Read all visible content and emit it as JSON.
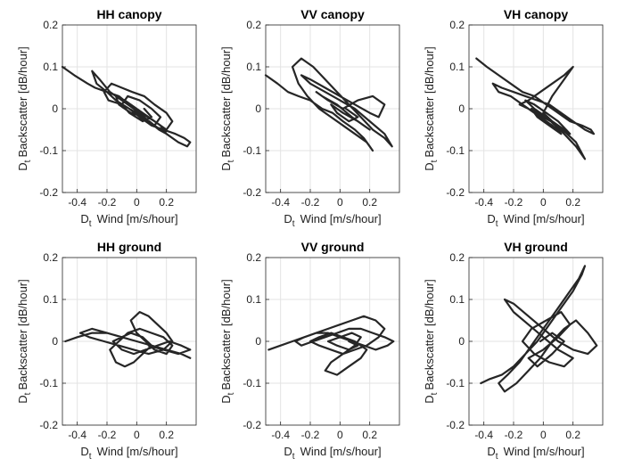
{
  "figure": {
    "x_label_prefix": "D",
    "x_label_sub": "t",
    "x_label_text": "Wind [m/s/hour]",
    "y_label_prefix": "D",
    "y_label_sub": "t",
    "y_label_text": "Backscatter [dB/hour]",
    "line_color": "#262626",
    "grid_color": "#e3e3e3"
  },
  "chart_data": [
    {
      "type": "line",
      "title": "HH canopy",
      "xlim": [
        -0.5,
        0.4
      ],
      "ylim": [
        -0.2,
        0.2
      ],
      "xticks": [
        -0.4,
        -0.2,
        0,
        0.2
      ],
      "xtick_labels": [
        "-0.4",
        "-0.2",
        "0",
        "0.2"
      ],
      "yticks": [
        -0.2,
        -0.1,
        0,
        0.1,
        0.2
      ],
      "ytick_labels": [
        "-0.2",
        "-0.1",
        "0",
        "0.1",
        "0.2"
      ],
      "grid": true,
      "series": [
        {
          "x": [
            -0.5,
            -0.42,
            -0.33,
            -0.28,
            -0.2,
            -0.14,
            -0.05,
            0.02,
            0.1,
            0.18,
            0.26,
            0.32,
            0.36,
            0.34,
            0.28,
            0.2,
            0.12,
            0.05,
            -0.02,
            -0.1,
            -0.18,
            -0.25,
            -0.3,
            -0.27,
            -0.2,
            -0.12,
            -0.05,
            0.03,
            0.12,
            0.2,
            0.24,
            0.2,
            0.12,
            0.05,
            -0.03,
            -0.1,
            -0.17,
            -0.22,
            -0.19,
            -0.1,
            0.0,
            0.08,
            0.15,
            0.2,
            0.16,
            0.08,
            0.0,
            -0.08,
            -0.14,
            -0.12,
            -0.04,
            0.05,
            0.12,
            0.16,
            0.1,
            0.02,
            -0.06,
            -0.1,
            -0.05,
            0.04,
            0.1,
            0.05
          ],
          "y": [
            0.1,
            0.08,
            0.06,
            0.05,
            0.04,
            0.02,
            0.0,
            -0.02,
            -0.04,
            -0.05,
            -0.06,
            -0.07,
            -0.08,
            -0.09,
            -0.08,
            -0.06,
            -0.04,
            -0.02,
            0.0,
            0.02,
            0.04,
            0.07,
            0.09,
            0.06,
            0.04,
            0.03,
            0.01,
            -0.01,
            -0.03,
            -0.05,
            -0.03,
            -0.01,
            0.01,
            0.03,
            0.04,
            0.05,
            0.06,
            0.04,
            0.02,
            0.01,
            -0.01,
            -0.03,
            -0.05,
            -0.06,
            -0.04,
            -0.02,
            0.0,
            0.02,
            0.03,
            0.01,
            -0.01,
            -0.02,
            -0.04,
            -0.02,
            0.0,
            0.02,
            0.03,
            0.01,
            -0.01,
            -0.03,
            -0.02,
            0.0
          ]
        }
      ]
    },
    {
      "type": "line",
      "title": "VV canopy",
      "xlim": [
        -0.5,
        0.4
      ],
      "ylim": [
        -0.2,
        0.2
      ],
      "xticks": [
        -0.4,
        -0.2,
        0,
        0.2
      ],
      "xtick_labels": [
        "-0.4",
        "-0.2",
        "0",
        "0.2"
      ],
      "yticks": [
        -0.2,
        -0.1,
        0,
        0.1,
        0.2
      ],
      "ytick_labels": [
        "-0.2",
        "-0.1",
        "0",
        "0.1",
        "0.2"
      ],
      "grid": true,
      "series": [
        {
          "x": [
            -0.5,
            -0.42,
            -0.35,
            -0.28,
            -0.2,
            -0.12,
            -0.05,
            0.02,
            0.1,
            0.16,
            0.2,
            0.22,
            0.18,
            0.1,
            0.02,
            -0.06,
            -0.14,
            -0.22,
            -0.28,
            -0.32,
            -0.26,
            -0.18,
            -0.1,
            -0.02,
            0.06,
            0.14,
            0.22,
            0.3,
            0.35,
            0.3,
            0.2,
            0.1,
            0.0,
            -0.1,
            -0.2,
            -0.26,
            -0.2,
            -0.1,
            0.0,
            0.1,
            0.2,
            0.26,
            0.3,
            0.22,
            0.12,
            0.02,
            -0.08,
            -0.16,
            -0.12,
            -0.02,
            0.08,
            0.16,
            0.2,
            0.12,
            0.02,
            -0.06,
            -0.02,
            0.06,
            0.12,
            0.04
          ],
          "y": [
            0.08,
            0.06,
            0.04,
            0.03,
            0.02,
            0.0,
            -0.01,
            -0.03,
            -0.05,
            -0.07,
            -0.09,
            -0.1,
            -0.08,
            -0.06,
            -0.04,
            -0.02,
            0.0,
            0.03,
            0.06,
            0.1,
            0.12,
            0.1,
            0.07,
            0.04,
            0.01,
            -0.02,
            -0.05,
            -0.07,
            -0.09,
            -0.06,
            -0.03,
            0.0,
            0.02,
            0.04,
            0.06,
            0.08,
            0.07,
            0.05,
            0.03,
            0.01,
            -0.01,
            -0.02,
            0.01,
            0.03,
            0.02,
            0.0,
            0.02,
            0.04,
            0.03,
            0.01,
            -0.02,
            -0.04,
            -0.05,
            -0.03,
            -0.01,
            0.01,
            -0.01,
            -0.03,
            -0.02,
            0.0
          ]
        }
      ]
    },
    {
      "type": "line",
      "title": "VH canopy",
      "xlim": [
        -0.5,
        0.4
      ],
      "ylim": [
        -0.2,
        0.2
      ],
      "xticks": [
        -0.4,
        -0.2,
        0,
        0.2
      ],
      "xtick_labels": [
        "-0.4",
        "-0.2",
        "0",
        "0.2"
      ],
      "yticks": [
        -0.2,
        -0.1,
        0,
        0.1,
        0.2
      ],
      "ytick_labels": [
        "-0.2",
        "-0.1",
        "0",
        "0.1",
        "0.2"
      ],
      "grid": true,
      "series": [
        {
          "x": [
            -0.45,
            -0.38,
            -0.3,
            -0.22,
            -0.14,
            -0.06,
            0.02,
            0.1,
            0.18,
            0.26,
            0.32,
            0.34,
            0.28,
            0.2,
            0.12,
            0.04,
            -0.04,
            -0.12,
            -0.2,
            -0.28,
            -0.34,
            -0.3,
            -0.22,
            -0.14,
            -0.06,
            0.02,
            0.1,
            0.16,
            0.22,
            0.28,
            0.22,
            0.14,
            0.06,
            0.0,
            0.06,
            0.14,
            0.2,
            0.14,
            0.06,
            -0.02,
            -0.1,
            -0.16,
            -0.1,
            -0.02,
            0.06,
            0.12,
            0.08,
            0.02,
            -0.06,
            -0.12,
            -0.06,
            0.02,
            0.1,
            0.18,
            0.1,
            0.0,
            -0.08,
            -0.04,
            0.04,
            0.12
          ],
          "y": [
            0.12,
            0.1,
            0.08,
            0.06,
            0.04,
            0.03,
            0.01,
            -0.01,
            -0.03,
            -0.04,
            -0.05,
            -0.06,
            -0.05,
            -0.03,
            -0.01,
            0.01,
            0.02,
            0.03,
            0.04,
            0.05,
            0.06,
            0.04,
            0.03,
            0.01,
            -0.01,
            -0.02,
            -0.04,
            -0.06,
            -0.08,
            -0.12,
            -0.09,
            -0.06,
            -0.03,
            -0.01,
            0.03,
            0.07,
            0.1,
            0.08,
            0.06,
            0.04,
            0.02,
            0.01,
            0.0,
            -0.02,
            -0.04,
            -0.06,
            -0.04,
            -0.02,
            0.0,
            0.02,
            0.01,
            -0.01,
            -0.03,
            -0.06,
            -0.04,
            -0.02,
            0.0,
            -0.02,
            -0.04,
            -0.06
          ]
        }
      ]
    },
    {
      "type": "line",
      "title": "HH ground",
      "xlim": [
        -0.5,
        0.4
      ],
      "ylim": [
        -0.2,
        0.2
      ],
      "xticks": [
        -0.4,
        -0.2,
        0,
        0.2
      ],
      "xtick_labels": [
        "-0.4",
        "-0.2",
        "0",
        "0.2"
      ],
      "yticks": [
        -0.2,
        -0.1,
        0,
        0.1,
        0.2
      ],
      "ytick_labels": [
        "-0.2",
        "-0.1",
        "0",
        "0.1",
        "0.2"
      ],
      "grid": true,
      "series": [
        {
          "x": [
            -0.48,
            -0.4,
            -0.3,
            -0.2,
            -0.1,
            0.0,
            0.1,
            0.2,
            0.3,
            0.36,
            0.3,
            0.2,
            0.1,
            0.0,
            -0.1,
            -0.2,
            -0.3,
            -0.38,
            -0.32,
            -0.22,
            -0.12,
            -0.02,
            0.08,
            0.18,
            0.24,
            0.2,
            0.14,
            0.08,
            0.02,
            -0.04,
            0.0,
            0.06,
            0.12,
            0.2,
            0.24,
            0.18,
            0.1,
            0.02,
            -0.06,
            -0.12,
            -0.18,
            -0.14,
            -0.08,
            -0.02,
            0.04,
            0.1,
            0.04,
            -0.04,
            -0.1,
            -0.16,
            -0.1,
            -0.02,
            0.06,
            0.14,
            0.22,
            0.3,
            0.36,
            0.28,
            0.18,
            0.08
          ],
          "y": [
            0.0,
            0.01,
            0.02,
            0.02,
            0.01,
            0.0,
            -0.01,
            -0.02,
            -0.03,
            -0.04,
            -0.03,
            -0.02,
            -0.01,
            0.0,
            0.01,
            0.02,
            0.03,
            0.02,
            0.01,
            0.0,
            -0.01,
            -0.02,
            -0.03,
            -0.02,
            0.0,
            0.02,
            0.04,
            0.06,
            0.07,
            0.05,
            0.02,
            0.0,
            -0.02,
            -0.03,
            -0.01,
            0.01,
            0.02,
            0.03,
            0.02,
            0.0,
            -0.02,
            -0.05,
            -0.06,
            -0.05,
            -0.03,
            -0.01,
            0.01,
            0.02,
            0.01,
            0.0,
            -0.02,
            -0.03,
            -0.02,
            -0.01,
            0.0,
            -0.01,
            -0.02,
            -0.03,
            -0.02,
            -0.01
          ]
        }
      ]
    },
    {
      "type": "line",
      "title": "VV ground",
      "xlim": [
        -0.5,
        0.4
      ],
      "ylim": [
        -0.2,
        0.2
      ],
      "xticks": [
        -0.4,
        -0.2,
        0,
        0.2
      ],
      "xtick_labels": [
        "-0.4",
        "-0.2",
        "0",
        "0.2"
      ],
      "yticks": [
        -0.2,
        -0.1,
        0,
        0.1,
        0.2
      ],
      "ytick_labels": [
        "-0.2",
        "-0.1",
        "0",
        "0.1",
        "0.2"
      ],
      "grid": true,
      "series": [
        {
          "x": [
            -0.48,
            -0.4,
            -0.32,
            -0.24,
            -0.16,
            -0.08,
            0.0,
            0.08,
            0.16,
            0.24,
            0.32,
            0.36,
            0.3,
            0.22,
            0.14,
            0.06,
            -0.02,
            -0.1,
            -0.18,
            -0.26,
            -0.3,
            -0.24,
            -0.16,
            -0.08,
            0.0,
            0.08,
            0.16,
            0.24,
            0.3,
            0.26,
            0.18,
            0.1,
            0.02,
            -0.06,
            -0.14,
            -0.2,
            -0.14,
            -0.06,
            0.02,
            0.1,
            0.18,
            0.14,
            0.06,
            -0.02,
            -0.1,
            -0.06,
            0.02,
            0.1,
            0.14,
            0.08,
            0.0,
            -0.08,
            -0.02,
            0.06,
            0.12,
            0.06
          ],
          "y": [
            -0.02,
            -0.01,
            0.0,
            0.01,
            0.02,
            0.02,
            0.01,
            0.0,
            -0.01,
            -0.02,
            -0.01,
            0.0,
            0.01,
            0.02,
            0.03,
            0.03,
            0.02,
            0.01,
            0.0,
            -0.01,
            0.0,
            0.01,
            0.02,
            0.03,
            0.04,
            0.05,
            0.06,
            0.05,
            0.03,
            0.01,
            -0.01,
            -0.02,
            -0.03,
            -0.02,
            -0.01,
            0.0,
            0.01,
            0.02,
            0.01,
            0.0,
            -0.02,
            -0.04,
            -0.06,
            -0.08,
            -0.07,
            -0.05,
            -0.03,
            -0.01,
            0.01,
            0.02,
            0.01,
            0.0,
            -0.01,
            -0.02,
            -0.01,
            0.0
          ]
        }
      ]
    },
    {
      "type": "line",
      "title": "VH ground",
      "xlim": [
        -0.5,
        0.4
      ],
      "ylim": [
        -0.2,
        0.2
      ],
      "xticks": [
        -0.4,
        -0.2,
        0,
        0.2
      ],
      "xtick_labels": [
        "-0.4",
        "-0.2",
        "0",
        "0.2"
      ],
      "yticks": [
        -0.2,
        -0.1,
        0,
        0.1,
        0.2
      ],
      "ytick_labels": [
        "-0.2",
        "-0.1",
        "0",
        "0.1",
        "0.2"
      ],
      "grid": true,
      "series": [
        {
          "x": [
            -0.42,
            -0.36,
            -0.28,
            -0.2,
            -0.12,
            -0.04,
            0.04,
            0.12,
            0.2,
            0.26,
            0.28,
            0.24,
            0.16,
            0.08,
            0.0,
            -0.08,
            -0.16,
            -0.24,
            -0.3,
            -0.26,
            -0.18,
            -0.1,
            -0.02,
            0.06,
            0.14,
            0.22,
            0.3,
            0.36,
            0.3,
            0.2,
            0.1,
            0.0,
            -0.1,
            -0.2,
            -0.26,
            -0.2,
            -0.1,
            0.0,
            0.1,
            0.2,
            0.14,
            0.04,
            -0.06,
            -0.14,
            -0.08,
            0.02,
            0.12,
            0.18,
            0.1,
            0.0,
            -0.1,
            -0.04,
            0.06,
            0.14,
            0.06,
            -0.02
          ],
          "y": [
            -0.1,
            -0.09,
            -0.08,
            -0.06,
            -0.03,
            0.0,
            0.04,
            0.08,
            0.12,
            0.16,
            0.18,
            0.15,
            0.11,
            0.07,
            0.03,
            -0.01,
            -0.05,
            -0.08,
            -0.1,
            -0.12,
            -0.1,
            -0.07,
            -0.04,
            0.0,
            0.03,
            0.05,
            0.02,
            -0.01,
            -0.03,
            -0.02,
            0.0,
            0.03,
            0.06,
            0.09,
            0.1,
            0.07,
            0.04,
            0.01,
            -0.02,
            -0.04,
            -0.06,
            -0.05,
            -0.03,
            0.0,
            0.03,
            0.05,
            0.07,
            0.04,
            0.01,
            -0.02,
            -0.04,
            -0.06,
            -0.03,
            0.0,
            0.02,
            0.0
          ]
        }
      ]
    }
  ]
}
